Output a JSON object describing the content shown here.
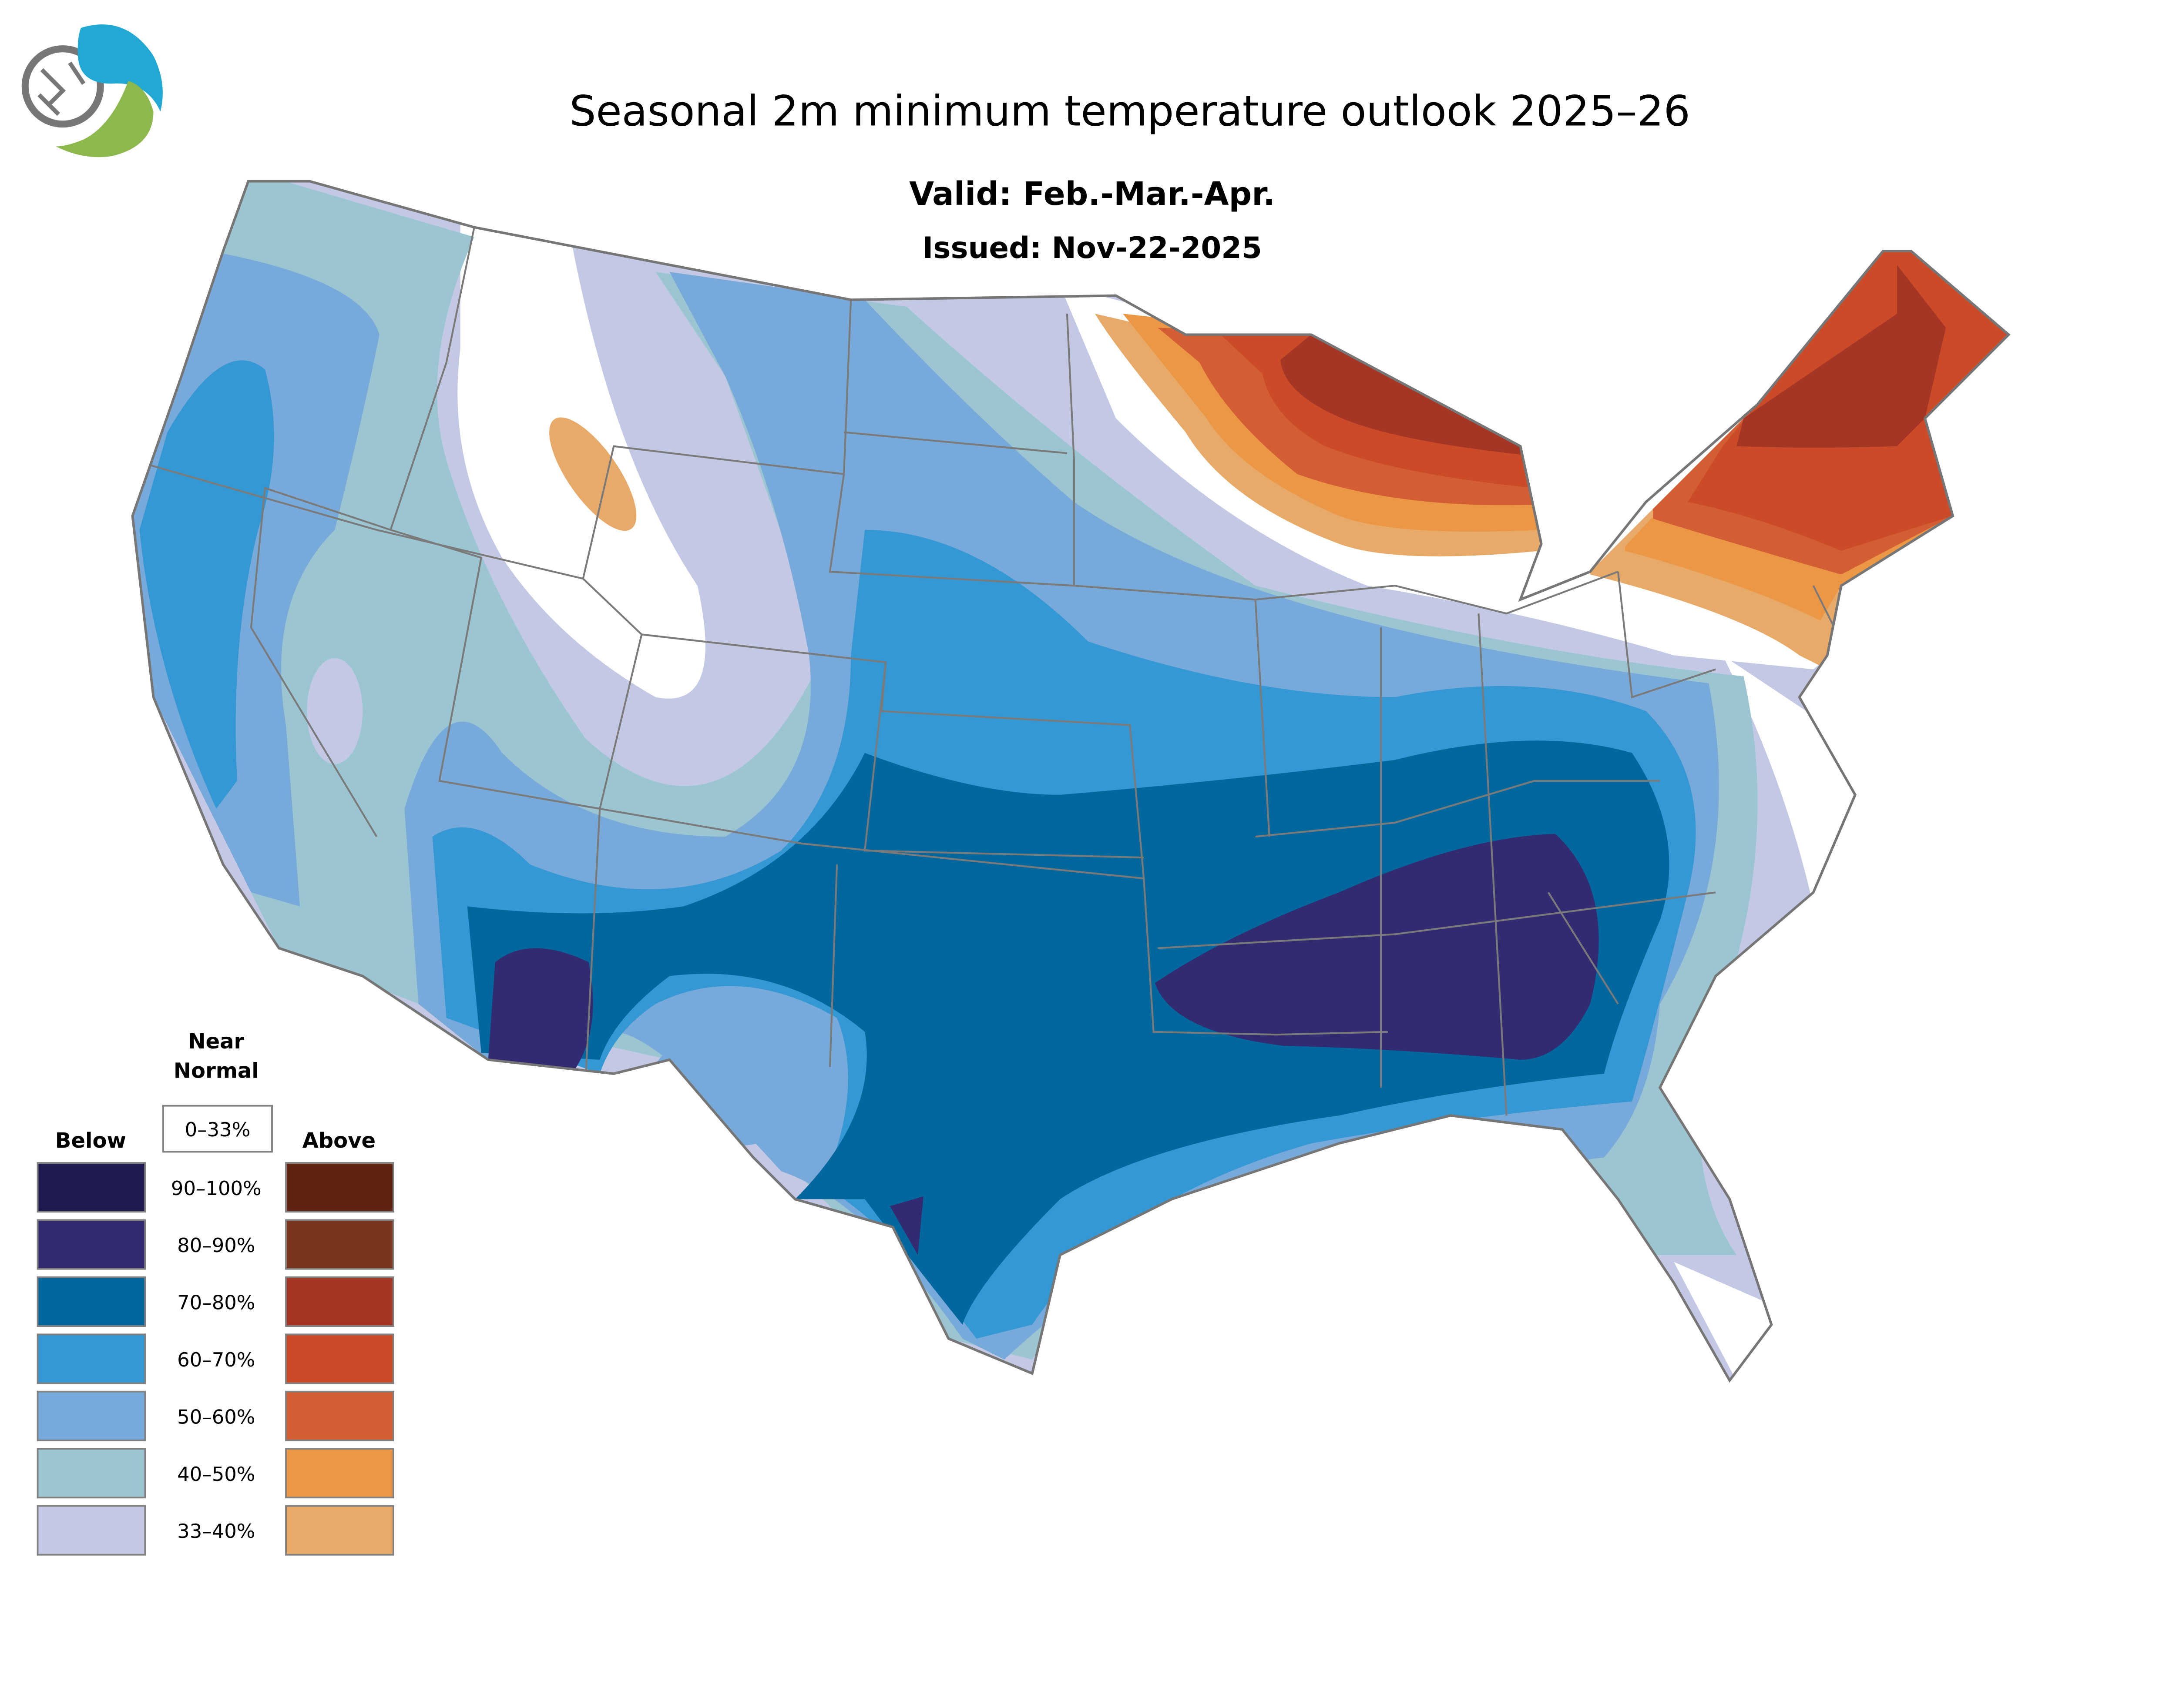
{
  "title": "Seasonal 2m minimum temperature outlook 2025–26",
  "valid": "Valid: Feb.-Mar.-Apr.",
  "issued": "Issued: Nov-22-2025",
  "legend": {
    "near_normal_line1": "Near",
    "near_normal_line2": "Normal",
    "near_normal_range": "0–33%",
    "below_label": "Below",
    "above_label": "Above",
    "rows": [
      {
        "range": "90–100%",
        "below_color": "#1f1a4f",
        "above_color": "#602311"
      },
      {
        "range": "80–90%",
        "below_color": "#332b72",
        "above_color": "#7b341d"
      },
      {
        "range": "70–80%",
        "below_color": "#02679d",
        "above_color": "#a53524"
      },
      {
        "range": "60–70%",
        "below_color": "#3398d3",
        "above_color": "#cb4b29"
      },
      {
        "range": "50–60%",
        "below_color": "#77a9da",
        "above_color": "#d45e34"
      },
      {
        "range": "40–50%",
        "below_color": "#9cc5d2",
        "above_color": "#eb9746"
      },
      {
        "range": "33–40%",
        "below_color": "#c3c9e4",
        "above_color": "#e8aa68"
      }
    ]
  },
  "logo": {
    "name": "organization logo"
  }
}
